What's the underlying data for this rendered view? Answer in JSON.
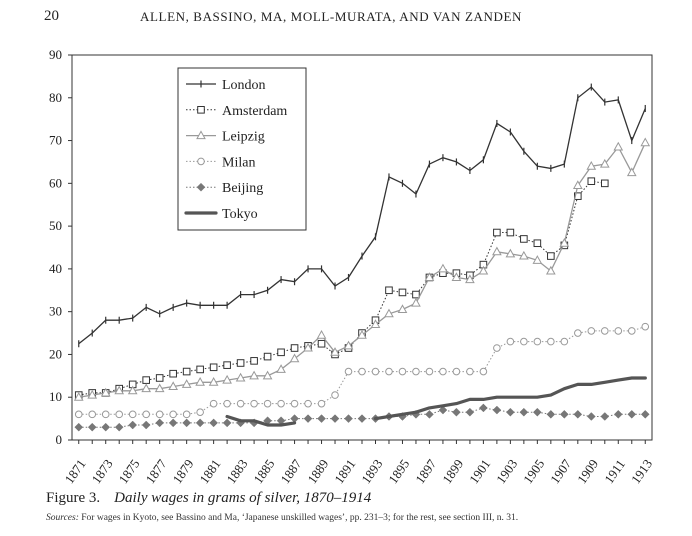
{
  "header": {
    "page_number": "20",
    "running_head": "ALLEN, BASSINO, MA, MOLL-MURATA, AND VAN ZANDEN"
  },
  "figure": {
    "label": "Figure 3.",
    "title": "Daily wages in grams of silver, 1870–1914",
    "sources_label": "Sources:",
    "sources_text": "For wages in Kyoto, see Bassino and Ma, ‘Japanese unskilled wages’, pp. 231–3; for the rest, see section III, n. 31."
  },
  "chart_data": {
    "type": "line",
    "title": "",
    "xlabel": "",
    "ylabel": "",
    "xlim": [
      1870.5,
      1913.5
    ],
    "ylim": [
      0,
      90
    ],
    "y_ticks": [
      0,
      10,
      20,
      30,
      40,
      50,
      60,
      70,
      80,
      90
    ],
    "x_tick_labels": [
      "1871",
      "1873",
      "1875",
      "1877",
      "1879",
      "1881",
      "1883",
      "1885",
      "1887",
      "1889",
      "1891",
      "1893",
      "1895",
      "1897",
      "1899",
      "1901",
      "1903",
      "1905",
      "1907",
      "1909",
      "1911",
      "1913"
    ],
    "legend_position": "top-left",
    "series": [
      {
        "name": "London",
        "color": "#333333",
        "marker": "tick",
        "style": "solid",
        "years": [
          1871,
          1872,
          1873,
          1874,
          1875,
          1876,
          1877,
          1878,
          1879,
          1880,
          1881,
          1882,
          1883,
          1884,
          1885,
          1886,
          1887,
          1888,
          1889,
          1890,
          1891,
          1892,
          1893,
          1894,
          1895,
          1896,
          1897,
          1898,
          1899,
          1900,
          1901,
          1902,
          1903,
          1904,
          1905,
          1906,
          1907,
          1908,
          1909,
          1910,
          1911,
          1912,
          1913
        ],
        "values": [
          22.5,
          25,
          28,
          28,
          28.5,
          31,
          29.5,
          31,
          32,
          31.5,
          31.5,
          31.5,
          34,
          34,
          35,
          37.5,
          37,
          40,
          40,
          36,
          38,
          43,
          47.5,
          61.5,
          60,
          57.5,
          64.5,
          66,
          65,
          63,
          65.5,
          74,
          72,
          67.5,
          64,
          63.5,
          64.5,
          80,
          82.5,
          79,
          79.5,
          70,
          77.5
        ]
      },
      {
        "name": "Amsterdam",
        "color": "#333333",
        "marker": "square",
        "style": "dotted",
        "years": [
          1871,
          1872,
          1873,
          1874,
          1875,
          1876,
          1877,
          1878,
          1879,
          1880,
          1881,
          1882,
          1883,
          1884,
          1885,
          1886,
          1887,
          1888,
          1889,
          1890,
          1891,
          1892,
          1893,
          1894,
          1895,
          1896,
          1897,
          1898,
          1899,
          1900,
          1901,
          1902,
          1903,
          1904,
          1905,
          1906,
          1907,
          1908,
          1909,
          1910
        ],
        "values": [
          10.5,
          11,
          11,
          12,
          13,
          14,
          14.5,
          15.5,
          16,
          16.5,
          17,
          17.5,
          18,
          18.5,
          19.5,
          20.5,
          21.5,
          22,
          22.5,
          20,
          21.5,
          25,
          28,
          35,
          34.5,
          34,
          38,
          39,
          39,
          38.5,
          41,
          48.5,
          48.5,
          47,
          46,
          43,
          45.5,
          57,
          60.5,
          60
        ]
      },
      {
        "name": "Leipzig",
        "color": "#999999",
        "marker": "triangle",
        "style": "solid",
        "years": [
          1871,
          1872,
          1873,
          1874,
          1875,
          1876,
          1877,
          1878,
          1879,
          1880,
          1881,
          1882,
          1883,
          1884,
          1885,
          1886,
          1887,
          1888,
          1889,
          1890,
          1891,
          1892,
          1893,
          1894,
          1895,
          1896,
          1897,
          1898,
          1899,
          1900,
          1901,
          1902,
          1903,
          1904,
          1905,
          1906,
          1907,
          1908,
          1909,
          1910,
          1911,
          1912,
          1913
        ],
        "values": [
          10,
          10.5,
          11,
          11.5,
          11.5,
          12,
          12,
          12.5,
          13,
          13.5,
          13.5,
          14,
          14.5,
          15,
          15,
          16.5,
          19,
          21.5,
          24.5,
          20.5,
          22,
          24.5,
          27,
          29.5,
          30.5,
          32,
          38,
          40,
          38,
          37.5,
          39.5,
          44,
          43.5,
          43,
          42,
          39.5,
          46,
          59.5,
          64,
          64.5,
          68.5,
          62.5,
          69.5
        ]
      },
      {
        "name": "Milan",
        "color": "#999999",
        "marker": "circle",
        "style": "dotted",
        "years": [
          1871,
          1872,
          1873,
          1874,
          1875,
          1876,
          1877,
          1878,
          1879,
          1880,
          1881,
          1882,
          1883,
          1884,
          1885,
          1886,
          1887,
          1888,
          1889,
          1890,
          1891,
          1892,
          1893,
          1894,
          1895,
          1896,
          1897,
          1898,
          1899,
          1900,
          1901,
          1902,
          1903,
          1904,
          1905,
          1906,
          1907,
          1908,
          1909,
          1910,
          1911,
          1912,
          1913
        ],
        "values": [
          6,
          6,
          6,
          6,
          6,
          6,
          6,
          6,
          6,
          6.5,
          8.5,
          8.5,
          8.5,
          8.5,
          8.5,
          8.5,
          8.5,
          8.5,
          8.5,
          10.5,
          16,
          16,
          16,
          16,
          16,
          16,
          16,
          16,
          16,
          16,
          16,
          21.5,
          23,
          23,
          23,
          23,
          23,
          25,
          25.5,
          25.5,
          25.5,
          25.5,
          26.5
        ]
      },
      {
        "name": "Beijing",
        "color": "#777777",
        "marker": "diamond",
        "style": "dotted",
        "years": [
          1871,
          1872,
          1873,
          1874,
          1875,
          1876,
          1877,
          1878,
          1879,
          1880,
          1881,
          1882,
          1883,
          1884,
          1885,
          1886,
          1887,
          1888,
          1889,
          1890,
          1891,
          1892,
          1893,
          1894,
          1895,
          1896,
          1897,
          1898,
          1899,
          1900,
          1901,
          1902,
          1903,
          1904,
          1905,
          1906,
          1907,
          1908,
          1909,
          1910,
          1911,
          1912,
          1913
        ],
        "values": [
          3,
          3,
          3,
          3,
          3.5,
          3.5,
          4,
          4,
          4,
          4,
          4,
          4,
          4,
          4,
          4.5,
          4.5,
          5,
          5,
          5,
          5,
          5,
          5,
          5,
          5.5,
          5.5,
          6,
          6,
          7,
          6.5,
          6.5,
          7.5,
          7,
          6.5,
          6.5,
          6.5,
          6,
          6,
          6,
          5.5,
          5.5,
          6,
          6,
          6
        ]
      },
      {
        "name": "Tokyo",
        "color": "#555555",
        "marker": "none",
        "style": "thick",
        "segments": [
          {
            "years": [
              1882,
              1883,
              1884,
              1885,
              1886,
              1887
            ],
            "values": [
              5.5,
              4.5,
              4.5,
              3.5,
              3.5,
              4
            ]
          },
          {
            "years": [
              1893,
              1894,
              1895,
              1896,
              1897,
              1898,
              1899,
              1900,
              1901,
              1902,
              1903,
              1904,
              1905,
              1906,
              1907,
              1908,
              1909,
              1910,
              1911,
              1912,
              1913
            ],
            "values": [
              5,
              5.5,
              6,
              6.5,
              7.5,
              8,
              8.5,
              9.5,
              9.5,
              10,
              10,
              10,
              10,
              10.5,
              12,
              13,
              13,
              13.5,
              14,
              14.5,
              14.5
            ]
          }
        ]
      }
    ]
  }
}
